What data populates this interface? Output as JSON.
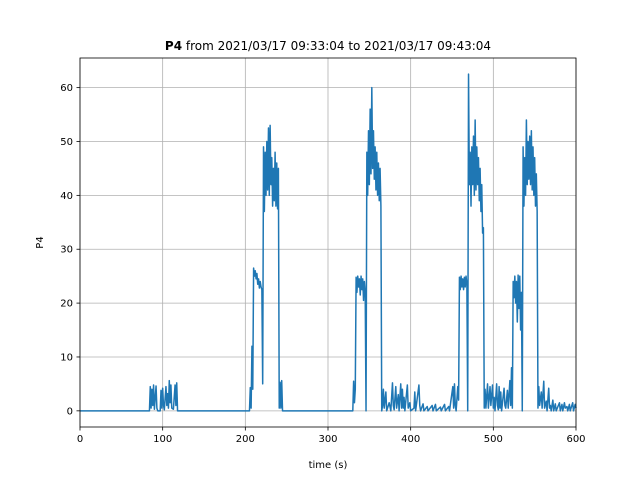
{
  "chart_data": {
    "type": "line",
    "title_bold": "P4",
    "title_rest": " from 2021/03/17 09:33:04 to 2021/03/17 09:43:04",
    "xlabel": "time (s)",
    "ylabel": "P4",
    "xlim": [
      0,
      600
    ],
    "ylim": [
      -3,
      65.5
    ],
    "grid": true,
    "x_ticks": [
      0,
      100,
      200,
      300,
      400,
      500,
      600
    ],
    "y_ticks": [
      0,
      10,
      20,
      30,
      40,
      50,
      60
    ],
    "colors": {
      "series": "#1f77b4"
    },
    "series": [
      {
        "points": [
          [
            0,
            0
          ],
          [
            84,
            0
          ],
          [
            85,
            4.5
          ],
          [
            86,
            0.5
          ],
          [
            87,
            4
          ],
          [
            88,
            1
          ],
          [
            89,
            4.8
          ],
          [
            90,
            0.3
          ],
          [
            92,
            4.6
          ],
          [
            93,
            0.5
          ],
          [
            94,
            0
          ],
          [
            97,
            0
          ],
          [
            98,
            3.8
          ],
          [
            99,
            0.5
          ],
          [
            100,
            4.2
          ],
          [
            101,
            1
          ],
          [
            102,
            0.2
          ],
          [
            104,
            4.5
          ],
          [
            105,
            1
          ],
          [
            106,
            3.2
          ],
          [
            107,
            0.5
          ],
          [
            108,
            5.6
          ],
          [
            109,
            1.5
          ],
          [
            110,
            4.8
          ],
          [
            111,
            0.5
          ],
          [
            113,
            0.3
          ],
          [
            115,
            4.8
          ],
          [
            116,
            1
          ],
          [
            117,
            5.2
          ],
          [
            118,
            0
          ],
          [
            205,
            0
          ],
          [
            206,
            4.3
          ],
          [
            207,
            0.5
          ],
          [
            208,
            12
          ],
          [
            209,
            4
          ],
          [
            210,
            26.5
          ],
          [
            211,
            25
          ],
          [
            212,
            26
          ],
          [
            213,
            24.5
          ],
          [
            214,
            25.5
          ],
          [
            215,
            23.5
          ],
          [
            216,
            24.5
          ],
          [
            217,
            22.8
          ],
          [
            218,
            24
          ],
          [
            219,
            23
          ],
          [
            220,
            22.5
          ],
          [
            221,
            5
          ],
          [
            222,
            49
          ],
          [
            223,
            37
          ],
          [
            224,
            48
          ],
          [
            225,
            40
          ],
          [
            226,
            50
          ],
          [
            227,
            41
          ],
          [
            228,
            52.5
          ],
          [
            229,
            40
          ],
          [
            230,
            53
          ],
          [
            231,
            42
          ],
          [
            232,
            47
          ],
          [
            233,
            38
          ],
          [
            234,
            45
          ],
          [
            235,
            39
          ],
          [
            236,
            48
          ],
          [
            237,
            38
          ],
          [
            238,
            46
          ],
          [
            239,
            37.5
          ],
          [
            240,
            45
          ],
          [
            241,
            0.5
          ],
          [
            242,
            5.3
          ],
          [
            243,
            0.5
          ],
          [
            244,
            5.6
          ],
          [
            245,
            0
          ],
          [
            330,
            0
          ],
          [
            331,
            5.5
          ],
          [
            332,
            1.5
          ],
          [
            333,
            4
          ],
          [
            334,
            24.8
          ],
          [
            335,
            22
          ],
          [
            336,
            25
          ],
          [
            337,
            23
          ],
          [
            338,
            24.5
          ],
          [
            339,
            21.5
          ],
          [
            340,
            25
          ],
          [
            341,
            22.5
          ],
          [
            342,
            24.5
          ],
          [
            343,
            20.5
          ],
          [
            344,
            24
          ],
          [
            345,
            22
          ],
          [
            346,
            0
          ],
          [
            347,
            48
          ],
          [
            348,
            40
          ],
          [
            349,
            52
          ],
          [
            350,
            42
          ],
          [
            351,
            56
          ],
          [
            352,
            44
          ],
          [
            353,
            60
          ],
          [
            354,
            45
          ],
          [
            355,
            52
          ],
          [
            356,
            43
          ],
          [
            357,
            49
          ],
          [
            358,
            41
          ],
          [
            359,
            48
          ],
          [
            360,
            40
          ],
          [
            361,
            46
          ],
          [
            362,
            39
          ],
          [
            363,
            45
          ],
          [
            364,
            38
          ],
          [
            365,
            0
          ],
          [
            366,
            1
          ],
          [
            367,
            4
          ],
          [
            368,
            0.5
          ],
          [
            370,
            3.5
          ],
          [
            371,
            0
          ],
          [
            374,
            1.5
          ],
          [
            376,
            0
          ],
          [
            378,
            5.2
          ],
          [
            379,
            1
          ],
          [
            380,
            0.2
          ],
          [
            382,
            4.5
          ],
          [
            383,
            0.5
          ],
          [
            385,
            3
          ],
          [
            386,
            0
          ],
          [
            388,
            5
          ],
          [
            389,
            0.5
          ],
          [
            390,
            4
          ],
          [
            391,
            0.5
          ],
          [
            392,
            2.5
          ],
          [
            393,
            0
          ],
          [
            396,
            4.8
          ],
          [
            397,
            0.5
          ],
          [
            399,
            1.5
          ],
          [
            400,
            0
          ],
          [
            404,
            0.5
          ],
          [
            405,
            3.5
          ],
          [
            406,
            0
          ],
          [
            410,
            4.8
          ],
          [
            411,
            1
          ],
          [
            412,
            0
          ],
          [
            415,
            1.3
          ],
          [
            416,
            0
          ],
          [
            420,
            0.8
          ],
          [
            421,
            0
          ],
          [
            426,
            1
          ],
          [
            427,
            0
          ],
          [
            430,
            1.2
          ],
          [
            431,
            0
          ],
          [
            436,
            0.7
          ],
          [
            437,
            0
          ],
          [
            441,
            1.2
          ],
          [
            442,
            0
          ],
          [
            446,
            0.8
          ],
          [
            447,
            0
          ],
          [
            451,
            4.5
          ],
          [
            452,
            0.5
          ],
          [
            453,
            5
          ],
          [
            454,
            1
          ],
          [
            455,
            0
          ],
          [
            457,
            4.5
          ],
          [
            458,
            2
          ],
          [
            459,
            24.8
          ],
          [
            460,
            22.5
          ],
          [
            461,
            25
          ],
          [
            462,
            23
          ],
          [
            463,
            24.5
          ],
          [
            464,
            22.5
          ],
          [
            465,
            24.8
          ],
          [
            466,
            23
          ],
          [
            467,
            25
          ],
          [
            468,
            23.5
          ],
          [
            469,
            0
          ],
          [
            470,
            62.5
          ],
          [
            471,
            42
          ],
          [
            472,
            48
          ],
          [
            473,
            38
          ],
          [
            474,
            49
          ],
          [
            475,
            42
          ],
          [
            476,
            51
          ],
          [
            477,
            40
          ],
          [
            478,
            54
          ],
          [
            479,
            41
          ],
          [
            480,
            49
          ],
          [
            481,
            42
          ],
          [
            482,
            47
          ],
          [
            483,
            39
          ],
          [
            484,
            45
          ],
          [
            485,
            37
          ],
          [
            486,
            42
          ],
          [
            487,
            33
          ],
          [
            488,
            34
          ],
          [
            489,
            0.5
          ],
          [
            490,
            4
          ],
          [
            491,
            0.5
          ],
          [
            493,
            5
          ],
          [
            494,
            0.5
          ],
          [
            496,
            4.5
          ],
          [
            497,
            1
          ],
          [
            499,
            4.8
          ],
          [
            500,
            0.5
          ],
          [
            501,
            2.5
          ],
          [
            502,
            0
          ],
          [
            504,
            5
          ],
          [
            505,
            1
          ],
          [
            506,
            0.2
          ],
          [
            507,
            4.5
          ],
          [
            508,
            0.5
          ],
          [
            509,
            3.5
          ],
          [
            510,
            0
          ],
          [
            513,
            4.2
          ],
          [
            514,
            1
          ],
          [
            515,
            0.5
          ],
          [
            517,
            3.8
          ],
          [
            518,
            0.5
          ],
          [
            520,
            5.6
          ],
          [
            521,
            1
          ],
          [
            522,
            8
          ],
          [
            523,
            0.5
          ],
          [
            524,
            24
          ],
          [
            525,
            21
          ],
          [
            526,
            25
          ],
          [
            527,
            20
          ],
          [
            528,
            24
          ],
          [
            529,
            16.5
          ],
          [
            530,
            25.2
          ],
          [
            531,
            19
          ],
          [
            532,
            25
          ],
          [
            533,
            15
          ],
          [
            534,
            22
          ],
          [
            535,
            0
          ],
          [
            536,
            49
          ],
          [
            537,
            38
          ],
          [
            538,
            47
          ],
          [
            539,
            40
          ],
          [
            540,
            54
          ],
          [
            541,
            42
          ],
          [
            542,
            50
          ],
          [
            543,
            43
          ],
          [
            544,
            51
          ],
          [
            545,
            42
          ],
          [
            546,
            52
          ],
          [
            547,
            41
          ],
          [
            548,
            49
          ],
          [
            549,
            40
          ],
          [
            550,
            47
          ],
          [
            551,
            38
          ],
          [
            552,
            44
          ],
          [
            553,
            37
          ],
          [
            554,
            0.5
          ],
          [
            555,
            4.5
          ],
          [
            556,
            1
          ],
          [
            558,
            3.5
          ],
          [
            559,
            0.5
          ],
          [
            561,
            5.5
          ],
          [
            562,
            0.5
          ],
          [
            564,
            1.8
          ],
          [
            565,
            0
          ],
          [
            567,
            4.2
          ],
          [
            568,
            0.5
          ],
          [
            569,
            1
          ],
          [
            570,
            0
          ],
          [
            572,
            2
          ],
          [
            573,
            0
          ],
          [
            575,
            1.3
          ],
          [
            576,
            0
          ],
          [
            580,
            1.5
          ],
          [
            581,
            0
          ],
          [
            583,
            1.2
          ],
          [
            584,
            0
          ],
          [
            586,
            1.5
          ],
          [
            587,
            0.5
          ],
          [
            589,
            0.8
          ],
          [
            590,
            0
          ],
          [
            592,
            1.2
          ],
          [
            593,
            0
          ],
          [
            596,
            1.5
          ],
          [
            597,
            0
          ],
          [
            599,
            1.2
          ],
          [
            600,
            0.5
          ]
        ]
      }
    ]
  }
}
